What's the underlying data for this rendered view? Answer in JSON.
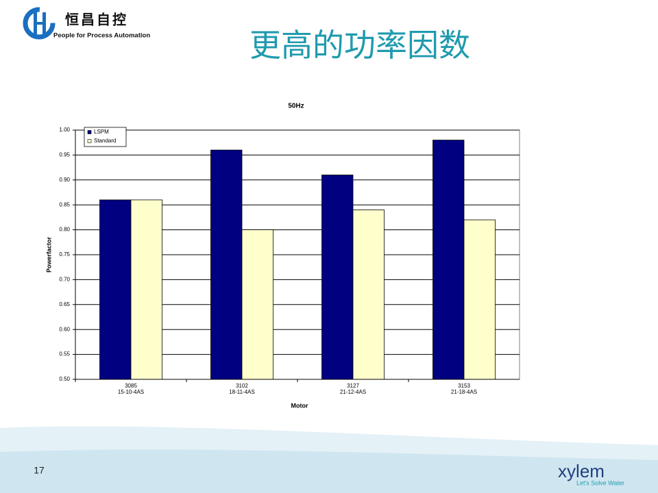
{
  "slide": {
    "logo_name": "恒昌自控",
    "logo_tagline": "People for Process Automation",
    "title": "更高的功率因数",
    "page_number": "17",
    "brand": "xylem",
    "brand_tagline": "Let's Solve Water"
  },
  "chart_data": {
    "type": "bar",
    "title": "50Hz",
    "x_label": "Motor",
    "y_label": "Powerfactor",
    "categories": [
      [
        "3085",
        "15-10-4AS"
      ],
      [
        "3102",
        "18-11-4AS"
      ],
      [
        "3127",
        "21-12-4AS"
      ],
      [
        "3153",
        "21-18-4AS"
      ]
    ],
    "series": [
      {
        "name": "LSPM",
        "color": "#000080",
        "values": [
          0.86,
          0.96,
          0.91,
          0.98
        ]
      },
      {
        "name": "Standard",
        "color": "#ffffcc",
        "values": [
          0.86,
          0.8,
          0.84,
          0.82
        ]
      }
    ],
    "ylim": [
      0.5,
      1.0
    ],
    "yticks": [
      {
        "value": 0.5,
        "label": "0.50"
      },
      0.55,
      {
        "value": 0.6,
        "label": "0.60"
      },
      0.65,
      {
        "value": 0.7,
        "label": "0.70"
      },
      0.75,
      {
        "value": 0.8,
        "label": "0.80"
      },
      0.85,
      {
        "value": 0.9,
        "label": "0.90"
      },
      0.95,
      {
        "value": 1.0,
        "label": "1.00"
      }
    ],
    "grid": true,
    "legend": "upper left"
  }
}
